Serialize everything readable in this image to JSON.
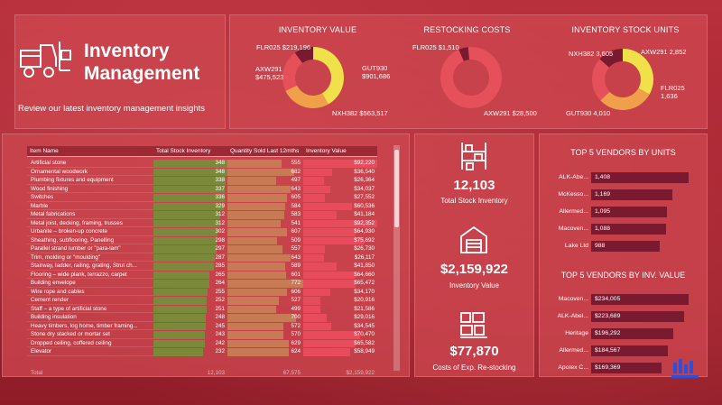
{
  "header": {
    "title_line1": "Inventory",
    "title_line2": "Management",
    "subtitle": "Review our latest inventory management insights"
  },
  "donuts": [
    {
      "title": "INVENTORY VALUE",
      "segments": [
        {
          "label": "GUT930 $901,686",
          "value": 901686,
          "color": "#f0e14a"
        },
        {
          "label": "NXH382 $563,517",
          "value": 563517,
          "color": "#f0a04a"
        },
        {
          "label": "AXW291 $475,523",
          "value": 475523,
          "color": "#e6505a"
        },
        {
          "label": "FLR025 $219,196",
          "value": 219196,
          "color": "#7a1a30"
        }
      ]
    },
    {
      "title": "RESTOCKING COSTS",
      "segments": [
        {
          "label": "AXW291 $28,500",
          "value": 28500,
          "color": "#e6505a"
        },
        {
          "label": "FLR025 $1,510",
          "value": 1510,
          "color": "#7a1a30"
        }
      ]
    },
    {
      "title": "INVENTORY STOCK UNITS",
      "segments": [
        {
          "label": "GUT930 4,010",
          "value": 4010,
          "color": "#f0e14a"
        },
        {
          "label": "NXH382 3,605",
          "value": 3605,
          "color": "#f0a04a"
        },
        {
          "label": "AXW291 2,852",
          "value": 2852,
          "color": "#e6505a"
        },
        {
          "label": "FLR025 1,636",
          "value": 1636,
          "color": "#7a1a30"
        }
      ]
    }
  ],
  "table": {
    "columns": [
      "Item Name",
      "Total Stock Inventory",
      "Quantity Sold Last 12mths",
      "Inventory Value"
    ],
    "rows": [
      [
        "Artificial stone",
        "348",
        "555",
        "$92,220"
      ],
      [
        "Ornamental woodwork",
        "348",
        "682",
        "$36,540"
      ],
      [
        "Plumbing fixtures and equipment",
        "338",
        "497",
        "$26,364"
      ],
      [
        "Wood finishing",
        "337",
        "643",
        "$34,037"
      ],
      [
        "Switches",
        "336",
        "605",
        "$27,552"
      ],
      [
        "Marble",
        "329",
        "584",
        "$60,536"
      ],
      [
        "Metal fabrications",
        "312",
        "583",
        "$41,184"
      ],
      [
        "Metal joist, decking, framing, trusses",
        "312",
        "541",
        "$92,352"
      ],
      [
        "Urbanite – broken-up concrete",
        "302",
        "607",
        "$64,930"
      ],
      [
        "Sheathing, subflooring, Panelling",
        "298",
        "509",
        "$75,692"
      ],
      [
        "Parallel strand lumber or \"para-lam\"",
        "297",
        "557",
        "$26,730"
      ],
      [
        "Trim, molding or \"moulding\"",
        "287",
        "643",
        "$26,117"
      ],
      [
        "Stairway, ladder, railing, grating, Strut ch...",
        "285",
        "589",
        "$41,850"
      ],
      [
        "Flooring – wide plank, terrazzo, carpet",
        "265",
        "601",
        "$64,660"
      ],
      [
        "Building envelope",
        "264",
        "772",
        "$65,472"
      ],
      [
        "Wire rope and cables",
        "255",
        "606",
        "$34,170"
      ],
      [
        "Cement render",
        "252",
        "527",
        "$20,916"
      ],
      [
        "Staff – a type of artificial stone",
        "251",
        "499",
        "$21,586"
      ],
      [
        "Building insulation",
        "248",
        "700",
        "$29,016"
      ],
      [
        "Heavy timbers, log home, timber framing...",
        "245",
        "572",
        "$34,545"
      ],
      [
        "Stone dry stacked or mortar set",
        "243",
        "570",
        "$70,470"
      ],
      [
        "Dropped ceiling, coffered ceiling",
        "242",
        "629",
        "$65,582"
      ],
      [
        "Elevator",
        "232",
        "624",
        "$58,949"
      ]
    ],
    "total": [
      "Total",
      "12,103",
      "67,575",
      "$2,159,922"
    ]
  },
  "kpis": [
    {
      "value": "12,103",
      "label": "Total Stock Inventory",
      "icon": "shelf-icon"
    },
    {
      "value": "$2,159,922",
      "label": "Inventory Value",
      "icon": "warehouse-icon"
    },
    {
      "value": "$77,870",
      "label": "Costs of Exp. Re-stocking",
      "icon": "boxes-icon"
    }
  ],
  "vendors_units": {
    "title": "TOP 5 VENDORS BY UNITS",
    "items": [
      {
        "name": "ALK-Abe...",
        "value": 1408,
        "label": "1,408"
      },
      {
        "name": "McKesso...",
        "value": 1169,
        "label": "1,169"
      },
      {
        "name": "Allermed...",
        "value": 1095,
        "label": "1,095"
      },
      {
        "name": "Macoven...",
        "value": 1088,
        "label": "1,088"
      },
      {
        "name": "Lake Ltd",
        "value": 988,
        "label": "988"
      }
    ]
  },
  "vendors_value": {
    "title": "TOP 5 VENDORS BY INV. VALUE",
    "items": [
      {
        "name": "Macoven...",
        "value": 234005,
        "label": "$234,005"
      },
      {
        "name": "ALK-Abel...",
        "value": 223689,
        "label": "$223,689"
      },
      {
        "name": "Heritage",
        "value": 196292,
        "label": "$196,292"
      },
      {
        "name": "Allermed...",
        "value": 184567,
        "label": "$184,567"
      },
      {
        "name": "Apotex C...",
        "value": 169369,
        "label": "$169,369"
      }
    ]
  },
  "colors": {
    "stock_bar": "#7a8a3a",
    "sold_bar": "#c87a55",
    "value_bar": "#e84b5c"
  }
}
